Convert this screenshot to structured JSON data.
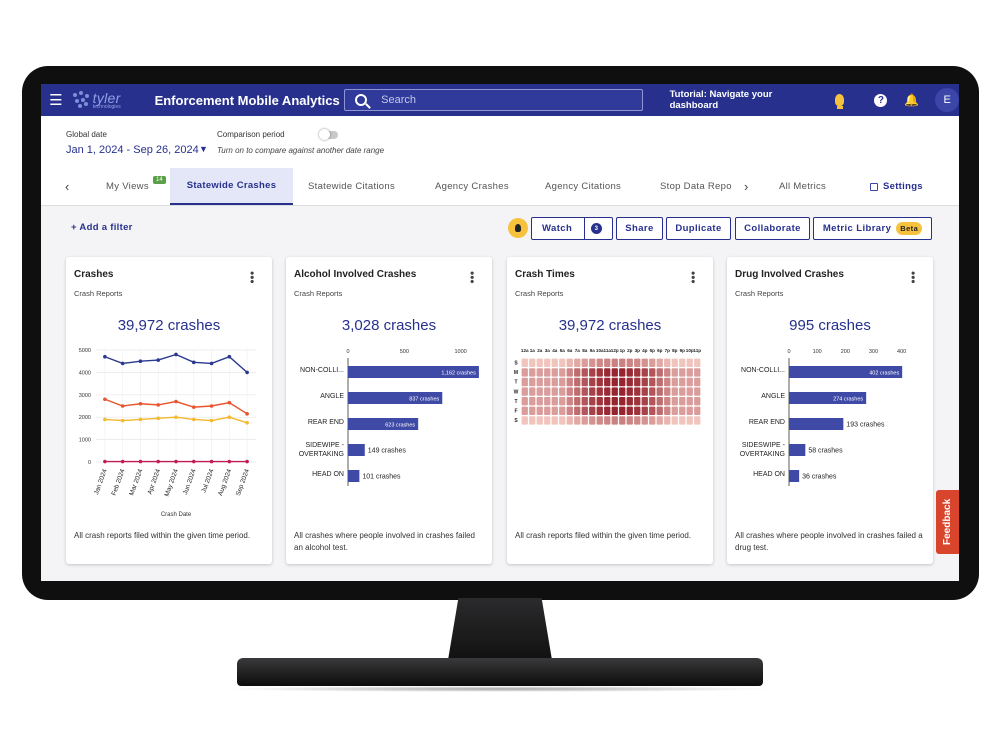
{
  "header": {
    "logo_main": "tyler",
    "logo_sub": "technologies",
    "app_title": "Enforcement Mobile Analytics",
    "search_placeholder": "Search",
    "tutorial": "Tutorial: Navigate your dashboard",
    "avatar_initial": "E",
    "icons": [
      "menu-icon",
      "search-icon",
      "bulb-icon",
      "help-icon",
      "bell-icon"
    ],
    "color": "#27318d"
  },
  "datebar": {
    "global_date_label": "Global date",
    "global_date_value": "Jan 1, 2024 - Sep 26, 2024",
    "comparison_label": "Comparison period",
    "comparison_hint": "Turn on to compare against another date range",
    "comparison_on": false
  },
  "tabs": {
    "items": [
      {
        "label": "My Views",
        "badge": "14"
      },
      {
        "label": "Statewide Crashes",
        "active": true
      },
      {
        "label": "Statewide Citations"
      },
      {
        "label": "Agency Crashes"
      },
      {
        "label": "Agency Citations"
      },
      {
        "label": "Stop Data Repo"
      }
    ],
    "all_metrics": "All Metrics",
    "settings": "Settings"
  },
  "toolbar": {
    "add_filter": "+ Add a filter",
    "watch": "Watch",
    "watch_count": "3",
    "share": "Share",
    "duplicate": "Duplicate",
    "collaborate": "Collaborate",
    "metric_library": "Metric Library",
    "beta": "Beta"
  },
  "cards": [
    {
      "title": "Crashes",
      "subtitle": "Crash Reports",
      "metric": "39,972 crashes",
      "footer": "All crash reports filed within the given time period."
    },
    {
      "title": "Alcohol Involved Crashes",
      "subtitle": "Crash Reports",
      "metric": "3,028 crashes",
      "footer": "All crashes where people involved in crashes failed an alcohol test."
    },
    {
      "title": "Crash Times",
      "subtitle": "Crash Reports",
      "metric": "39,972 crashes",
      "footer": "All crash reports filed within the given time period."
    },
    {
      "title": "Drug Involved Crashes",
      "subtitle": "Crash Reports",
      "metric": "995 crashes",
      "footer": "All crashes where people involved in crashes failed a drug test."
    }
  ],
  "feedback": "Feedback",
  "chart_data": [
    {
      "type": "line",
      "x": [
        "Jan 2024",
        "Feb 2024",
        "Mar 2024",
        "Apr 2024",
        "May 2024",
        "Jun 2024",
        "Jul 2024",
        "Aug 2024",
        "Sep 2024"
      ],
      "xlabel": "Crash Date",
      "ylabel": "",
      "ylim": [
        0,
        5000
      ],
      "yticks": [
        0,
        1000,
        2000,
        3000,
        4000,
        5000
      ],
      "grid": true,
      "series": [
        {
          "color": "#2b3990",
          "values": [
            4700,
            4400,
            4500,
            4550,
            4800,
            4450,
            4400,
            4700,
            4000
          ]
        },
        {
          "color": "#e8542e",
          "values": [
            2800,
            2500,
            2600,
            2550,
            2700,
            2450,
            2500,
            2650,
            2150
          ]
        },
        {
          "color": "#f5b82e",
          "values": [
            1900,
            1850,
            1900,
            1950,
            2000,
            1900,
            1850,
            2000,
            1750
          ]
        },
        {
          "color": "#c21d52",
          "values": [
            20,
            20,
            20,
            20,
            20,
            20,
            20,
            20,
            20
          ]
        }
      ]
    },
    {
      "type": "bar",
      "orientation": "horizontal",
      "categories": [
        "NON-COLLI...",
        "ANGLE",
        "REAR END",
        "SIDEWIPE - OVERTAKING",
        "HEAD ON"
      ],
      "values": [
        1162,
        837,
        623,
        149,
        101
      ],
      "data_labels": [
        "1,162 crashes",
        "837 crashes",
        "623 crashes",
        "149 crashes",
        "101 crashes"
      ],
      "xlim": [
        0,
        1000
      ],
      "xticks": [
        0,
        500,
        1000
      ],
      "color": "#3f4aa6"
    },
    {
      "type": "heatmap",
      "x": [
        "12a",
        "1a",
        "2a",
        "3a",
        "4a",
        "5a",
        "6a",
        "7a",
        "8a",
        "9a",
        "10a",
        "11a",
        "12p",
        "1p",
        "2p",
        "3p",
        "4p",
        "5p",
        "6p",
        "7p",
        "8p",
        "9p",
        "10p",
        "11p"
      ],
      "y": [
        "S",
        "M",
        "T",
        "W",
        "T",
        "F",
        "S"
      ],
      "colors": {
        "low": "#f8d0c8",
        "high": "#8e1420"
      }
    },
    {
      "type": "bar",
      "orientation": "horizontal",
      "categories": [
        "NON-COLLI...",
        "ANGLE",
        "REAR END",
        "SIDESWIPE - OVERTAKING",
        "HEAD ON"
      ],
      "values": [
        402,
        274,
        193,
        58,
        36
      ],
      "data_labels": [
        "402 crashes",
        "274 crashes",
        "193 crashes",
        "58 crashes",
        "36 crashes"
      ],
      "xlim": [
        0,
        400
      ],
      "xticks": [
        0,
        100,
        200,
        300,
        400
      ],
      "color": "#3f4aa6"
    }
  ]
}
